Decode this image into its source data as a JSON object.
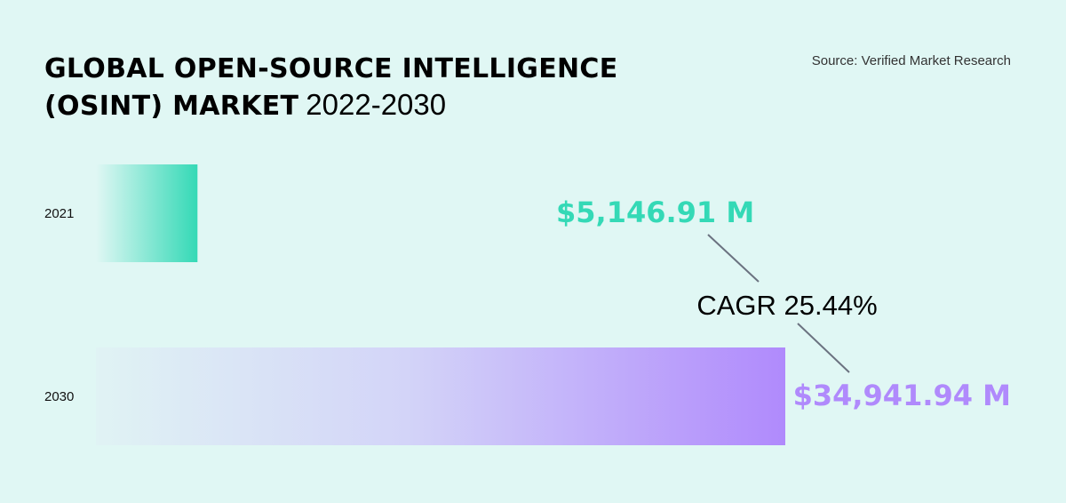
{
  "header": {
    "title_line1": "GLOBAL OPEN-SOURCE INTELLIGENCE",
    "title_line2": "(OSINT) MARKET",
    "title_years": "2022-2030",
    "source": "Source: Verified Market Research"
  },
  "chart_data": {
    "type": "bar",
    "orientation": "horizontal",
    "categories": [
      "2021",
      "2030"
    ],
    "values": [
      5146.91,
      34941.94
    ],
    "value_labels": [
      "$5,146.91 M",
      "$34,941.94 M"
    ],
    "unit": "M",
    "colors": [
      "#34d9b6",
      "#b08afc"
    ],
    "annotation": "CAGR 25.44%",
    "grid": false,
    "legend": "none"
  },
  "colors": {
    "background": "#e0f7f4",
    "bar_2021_end": "#34d9b6",
    "bar_2030_end": "#b08afc",
    "connector": "#6b7280"
  }
}
